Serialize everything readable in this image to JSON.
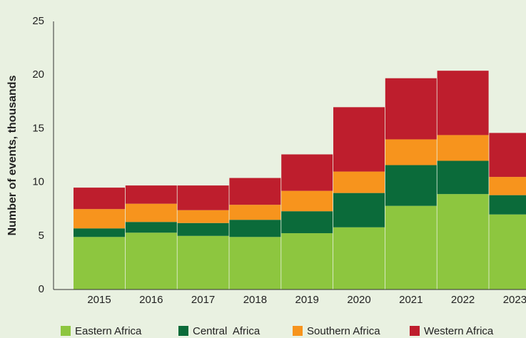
{
  "chart_data": {
    "type": "stacked_bar",
    "y_label": "Number of events, thousands",
    "categories": [
      "2015",
      "2016",
      "2017",
      "2018",
      "2019",
      "2020",
      "2021",
      "2022",
      "2023"
    ],
    "series": [
      {
        "name": "Eastern Africa",
        "color": "#8dc63f",
        "values": [
          4.9,
          5.3,
          5.0,
          4.9,
          5.25,
          5.8,
          7.8,
          8.9,
          7.0
        ]
      },
      {
        "name": "Central  Africa",
        "color": "#0b6b3a",
        "values": [
          0.8,
          1.0,
          1.2,
          1.6,
          2.05,
          3.2,
          3.8,
          3.1,
          1.8
        ]
      },
      {
        "name": "Southern Africa",
        "color": "#f7941d",
        "values": [
          1.8,
          1.7,
          1.2,
          1.4,
          1.9,
          2.0,
          2.4,
          2.4,
          1.7
        ]
      },
      {
        "name": "Western Africa",
        "color": "#be1e2d",
        "values": [
          2.0,
          1.7,
          2.3,
          2.5,
          3.4,
          6.0,
          5.7,
          6.0,
          4.1
        ]
      }
    ],
    "ylim": [
      0,
      25
    ],
    "yticks": [
      0,
      5,
      10,
      15,
      20,
      25
    ],
    "grid": false,
    "legend": "bottom"
  }
}
